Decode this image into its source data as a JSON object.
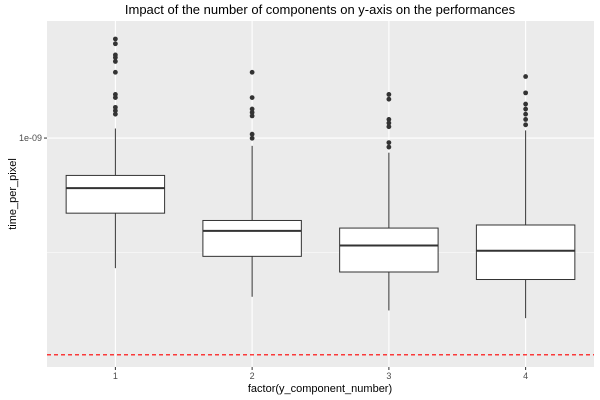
{
  "chart_data": {
    "type": "box",
    "title": "Impact of the number of components on y-axis on the performances",
    "xlabel": "factor(y_component_number)",
    "ylabel": "time_per_pixel",
    "y_scale": "log10",
    "ylim": [
      3.1e-10,
      1.82e-09
    ],
    "y_ticks": [
      {
        "value": 1e-09,
        "label": "1e-09"
      }
    ],
    "categories": [
      "1",
      "2",
      "3",
      "4"
    ],
    "boxes": [
      {
        "category": "1",
        "whisker_low": 5.14e-10,
        "q1": 6.81e-10,
        "median": 7.74e-10,
        "q3": 8.26e-10,
        "whisker_high": 1.05e-09,
        "outliers": [
          1.15e-09,
          1.13e-09,
          1.17e-09,
          1.23e-09,
          1.25e-09,
          1.4e-09,
          1.48e-09,
          1.51e-09,
          1.53e-09,
          1.62e-09,
          1.66e-09
        ]
      },
      {
        "category": "2",
        "whisker_low": 4.44e-10,
        "q1": 5.46e-10,
        "median": 6.22e-10,
        "q3": 6.56e-10,
        "whisker_high": 9.61e-10,
        "outliers": [
          9.99e-10,
          1.02e-09,
          1.12e-09,
          1.14e-09,
          1.16e-09,
          1.23e-09,
          1.4e-09
        ]
      },
      {
        "category": "3",
        "whisker_low": 4.14e-10,
        "q1": 5.04e-10,
        "median": 5.77e-10,
        "q3": 6.31e-10,
        "whisker_high": 9.28e-10,
        "outliers": [
          9.55e-10,
          9.77e-10,
          1.06e-09,
          1.08e-09,
          1.1e-09,
          1.22e-09,
          1.25e-09
        ]
      },
      {
        "category": "4",
        "whisker_low": 3.98e-10,
        "q1": 4.85e-10,
        "median": 5.62e-10,
        "q3": 6.41e-10,
        "whisker_high": 1.04e-09,
        "outliers": [
          1.07e-09,
          1.1e-09,
          1.13e-09,
          1.16e-09,
          1.19e-09,
          1.26e-09,
          1.37e-09
        ]
      }
    ],
    "reference_line": {
      "value": 3.3e-10,
      "color": "#ff0000",
      "style": "dashed"
    },
    "panel_background": "#ebebeb",
    "grid_color": "#ffffff",
    "grid": true,
    "legend": "none"
  }
}
